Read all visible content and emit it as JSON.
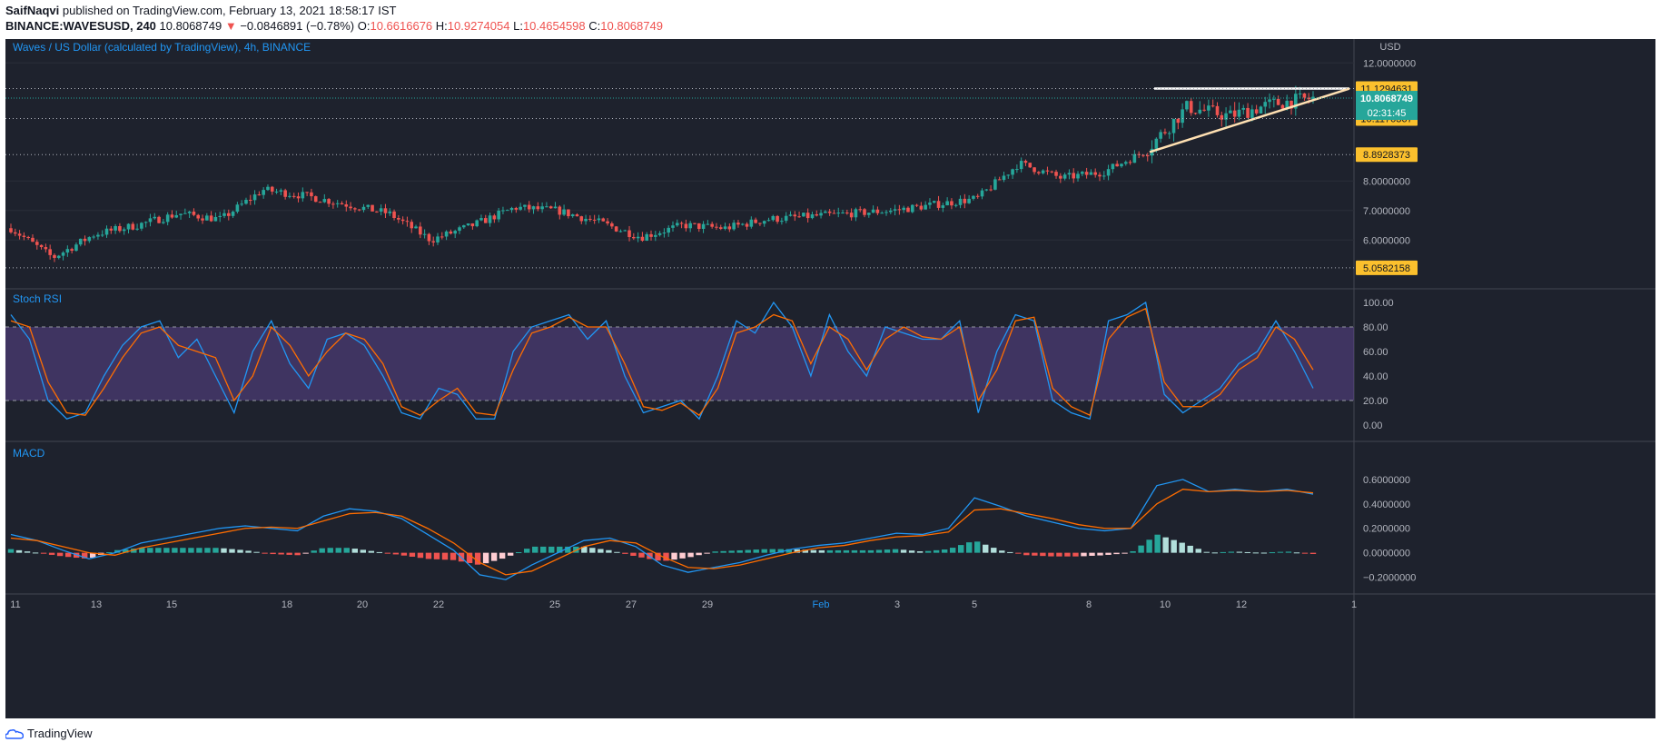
{
  "header": {
    "author": "SaifNaqvi",
    "published": " published on TradingView.com, February 13, 2021 18:58:17 IST",
    "symbol_line": "BINANCE:WAVESUSD, 240",
    "last": "10.8068749",
    "arrow": "▼",
    "change": "−0.0846891 (−0.78%)",
    "o_label": "O:",
    "o_val": "10.6616676",
    "h_label": "H:",
    "h_val": "10.9274054",
    "l_label": "L:",
    "l_val": "10.4654598",
    "c_label": "C:",
    "c_val": "10.8068749"
  },
  "footer": {
    "brand": "TradingView",
    "icon": "tradingview-cloud-icon"
  },
  "colors": {
    "background": "#1e222d",
    "up": "#26a69a",
    "down": "#ef5350",
    "stoch_k": "#2196f3",
    "stoch_d": "#ff6d00",
    "stoch_band": "#7e57c2",
    "price_tag": "#fbc02d",
    "last_tag": "#26a69a",
    "trendline": "#ffffff"
  },
  "chart_data": [
    {
      "type": "candlestick",
      "title": "Waves / US Dollar (calculated by TradingView), 4h, BINANCE",
      "ylabel": "USD",
      "ylim": [
        4.5,
        12.5
      ],
      "y_ticks": [
        "12.0000000",
        "8.0000000",
        "7.0000000",
        "6.0000000"
      ],
      "x_ticks": [
        "11",
        "13",
        "15",
        "18",
        "20",
        "22",
        "25",
        "27",
        "29",
        "Feb",
        "3",
        "5",
        "8",
        "10",
        "12",
        "1"
      ],
      "price_levels": [
        "11.1294631",
        "10.1170367",
        "8.8928373",
        "5.0582158"
      ],
      "last_price_label": "10.8068749",
      "countdown": "02:31:45",
      "approx_close_path": [
        {
          "date": "Jan 11",
          "close": 6.4
        },
        {
          "date": "Jan 12",
          "close": 5.4
        },
        {
          "date": "Jan 13",
          "close": 6.2
        },
        {
          "date": "Jan 15",
          "close": 6.5
        },
        {
          "date": "Jan 16",
          "close": 6.9
        },
        {
          "date": "Jan 17",
          "close": 6.7
        },
        {
          "date": "Jan 18",
          "close": 7.7
        },
        {
          "date": "Jan 19",
          "close": 7.5
        },
        {
          "date": "Jan 20",
          "close": 7.2
        },
        {
          "date": "Jan 21",
          "close": 6.9
        },
        {
          "date": "Jan 22",
          "close": 6.0
        },
        {
          "date": "Jan 23",
          "close": 6.5
        },
        {
          "date": "Jan 25",
          "close": 7.1
        },
        {
          "date": "Jan 26",
          "close": 7.0
        },
        {
          "date": "Jan 27",
          "close": 6.6
        },
        {
          "date": "Jan 28",
          "close": 6.1
        },
        {
          "date": "Jan 29",
          "close": 6.5
        },
        {
          "date": "Jan 30",
          "close": 6.4
        },
        {
          "date": "Jan 31",
          "close": 6.7
        },
        {
          "date": "Feb 1",
          "close": 6.8
        },
        {
          "date": "Feb 2",
          "close": 6.9
        },
        {
          "date": "Feb 3",
          "close": 7.0
        },
        {
          "date": "Feb 4",
          "close": 7.2
        },
        {
          "date": "Feb 5",
          "close": 7.4
        },
        {
          "date": "Feb 6",
          "close": 8.6
        },
        {
          "date": "Feb 7",
          "close": 8.1
        },
        {
          "date": "Feb 8",
          "close": 8.3
        },
        {
          "date": "Feb 9",
          "close": 9.0
        },
        {
          "date": "Feb 10",
          "close": 10.5
        },
        {
          "date": "Feb 11",
          "close": 10.2
        },
        {
          "date": "Feb 12",
          "close": 10.6
        },
        {
          "date": "Feb 13",
          "close": 10.8068749
        }
      ]
    },
    {
      "type": "line",
      "title": "Stoch RSI",
      "ylim": [
        0,
        100
      ],
      "y_ticks": [
        "100.00",
        "80.00",
        "60.00",
        "40.00",
        "20.00",
        "0.00"
      ],
      "band": [
        20,
        80
      ],
      "series": [
        {
          "color": "#2196f3",
          "values": [
            90,
            70,
            20,
            5,
            10,
            40,
            65,
            80,
            85,
            55,
            70,
            40,
            10,
            60,
            85,
            50,
            30,
            70,
            75,
            65,
            40,
            10,
            5,
            30,
            25,
            5,
            5,
            60,
            80,
            85,
            90,
            70,
            85,
            40,
            10,
            15,
            20,
            5,
            40,
            85,
            75,
            100,
            80,
            40,
            90,
            60,
            40,
            80,
            75,
            70,
            70,
            85,
            10,
            60,
            90,
            85,
            20,
            10,
            5,
            85,
            90,
            100,
            25,
            10,
            20,
            30,
            50,
            60,
            85,
            60,
            30
          ]
        },
        {
          "color": "#ff6d00",
          "values": [
            85,
            80,
            35,
            10,
            8,
            30,
            55,
            75,
            80,
            65,
            60,
            55,
            20,
            40,
            80,
            65,
            40,
            60,
            75,
            70,
            50,
            15,
            8,
            20,
            30,
            10,
            8,
            45,
            75,
            80,
            88,
            80,
            80,
            50,
            15,
            12,
            18,
            8,
            30,
            75,
            80,
            90,
            85,
            50,
            80,
            70,
            45,
            70,
            80,
            72,
            70,
            80,
            20,
            45,
            85,
            88,
            30,
            15,
            8,
            70,
            88,
            95,
            35,
            15,
            15,
            25,
            45,
            55,
            80,
            70,
            45
          ]
        }
      ]
    },
    {
      "type": "bar",
      "title": "MACD",
      "ylim": [
        -0.3,
        0.8
      ],
      "y_ticks": [
        "0.6000000",
        "0.4000000",
        "0.2000000",
        "0.0000000",
        "−0.2000000"
      ],
      "macd_line": [
        0.15,
        0.1,
        0.02,
        -0.05,
        0.0,
        0.08,
        0.12,
        0.16,
        0.2,
        0.22,
        0.2,
        0.18,
        0.3,
        0.36,
        0.34,
        0.28,
        0.15,
        0.02,
        -0.18,
        -0.22,
        -0.1,
        0.0,
        0.1,
        0.12,
        0.05,
        -0.1,
        -0.16,
        -0.12,
        -0.08,
        -0.02,
        0.03,
        0.06,
        0.08,
        0.12,
        0.16,
        0.15,
        0.2,
        0.45,
        0.38,
        0.3,
        0.25,
        0.2,
        0.18,
        0.2,
        0.55,
        0.6,
        0.5,
        0.52,
        0.5,
        0.52,
        0.48
      ],
      "signal_line": [
        0.12,
        0.1,
        0.05,
        0.0,
        -0.02,
        0.04,
        0.08,
        0.12,
        0.16,
        0.2,
        0.21,
        0.2,
        0.26,
        0.32,
        0.33,
        0.3,
        0.2,
        0.08,
        -0.08,
        -0.18,
        -0.15,
        -0.05,
        0.05,
        0.1,
        0.08,
        -0.03,
        -0.12,
        -0.13,
        -0.1,
        -0.05,
        0.0,
        0.04,
        0.06,
        0.1,
        0.13,
        0.14,
        0.17,
        0.35,
        0.36,
        0.32,
        0.28,
        0.23,
        0.2,
        0.2,
        0.4,
        0.52,
        0.5,
        0.51,
        0.5,
        0.51,
        0.49
      ],
      "histogram": [
        0.03,
        0.0,
        -0.03,
        -0.05,
        0.02,
        0.04,
        0.04,
        0.04,
        0.04,
        0.02,
        -0.01,
        -0.02,
        0.04,
        0.04,
        0.01,
        -0.02,
        -0.05,
        -0.06,
        -0.1,
        -0.04,
        0.05,
        0.05,
        0.05,
        0.02,
        -0.03,
        -0.07,
        -0.04,
        0.01,
        0.02,
        0.03,
        0.03,
        0.02,
        0.02,
        0.02,
        0.03,
        0.01,
        0.03,
        0.1,
        0.02,
        -0.02,
        -0.03,
        -0.03,
        -0.02,
        0.0,
        0.15,
        0.08,
        0.0,
        0.01,
        0.0,
        0.01,
        -0.01
      ]
    }
  ]
}
